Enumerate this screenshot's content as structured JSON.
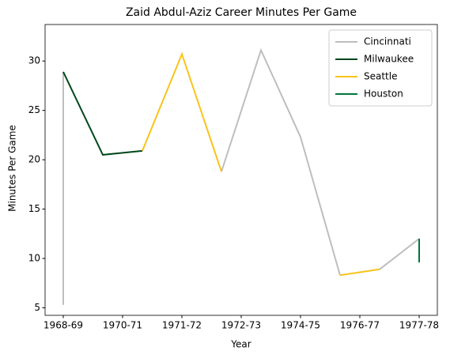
{
  "chart_data": {
    "type": "line",
    "title": "Zaid Abdul-Aziz Career Minutes Per Game",
    "xlabel": "Year",
    "ylabel": "Minutes Per Game",
    "xlim": [
      -0.46,
      9.46
    ],
    "xticks": [
      {
        "value": 0,
        "label": "1968-69"
      },
      {
        "value": 1.5,
        "label": "1970-71"
      },
      {
        "value": 3,
        "label": "1971-72"
      },
      {
        "value": 4.5,
        "label": "1972-73"
      },
      {
        "value": 6,
        "label": "1974-75"
      },
      {
        "value": 7.5,
        "label": "1976-77"
      },
      {
        "value": 9,
        "label": "1977-78"
      }
    ],
    "ylim": [
      4.24,
      33.7
    ],
    "yticks": [
      5,
      10,
      15,
      20,
      25,
      30
    ],
    "grid": false,
    "legend": "upper right",
    "series": [
      {
        "name": "Cincinnati",
        "color": "#bebebe",
        "x": [
          0,
          0,
          4,
          4,
          5,
          6,
          7,
          7,
          8,
          9
        ],
        "values": [
          5.3,
          28.9,
          null,
          18.8,
          31.1,
          22.3,
          8.3,
          null,
          8.9,
          12.0
        ]
      },
      {
        "name": "Milwaukee",
        "color": "#00471b",
        "x": [
          0,
          1,
          2
        ],
        "values": [
          28.9,
          20.5,
          20.9
        ]
      },
      {
        "name": "Seattle",
        "color": "#f9c31a",
        "x": [
          2,
          3,
          4,
          4,
          7,
          8
        ],
        "values": [
          20.9,
          30.7,
          18.8,
          null,
          8.3,
          8.9
        ]
      },
      {
        "name": "Houston",
        "color": "#00773c",
        "x": [
          9,
          9
        ],
        "values": [
          12.0,
          9.6
        ]
      }
    ]
  }
}
